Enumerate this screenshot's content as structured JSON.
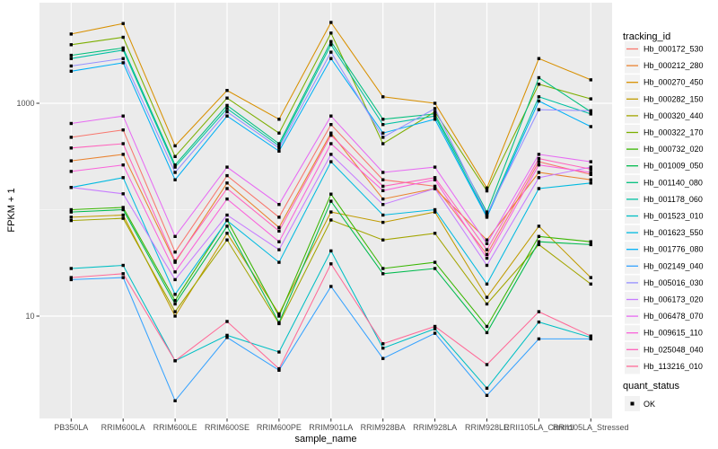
{
  "window": {
    "background": "#FFFFFF"
  },
  "chart_data": {
    "type": "line",
    "title": "",
    "xlabel": "sample_name",
    "ylabel": "FPKM + 1",
    "y_scale": "log10",
    "ylim": [
      1.05,
      7000
    ],
    "yticks": [
      10,
      1000
    ],
    "y_minor_gridlines": [
      100
    ],
    "grid": "on",
    "panel_background": "#EBEBEB",
    "gridline_color": "#FFFFFF",
    "point_color": "#000000",
    "point_shape": "square",
    "legend_position": "right",
    "legend_key_background": "#F2F2F2",
    "categories": [
      "PB350LA",
      "RRIM600LA",
      "RRIM600LE",
      "RRIM600SE",
      "RRIM600PE",
      "RRIM901LA",
      "RRIM928BA",
      "RRIM928LA",
      "RRIM928LE",
      "RRII105LA_Control",
      "RRII105LA_Stressed"
    ],
    "series": [
      {
        "name": "Hb_000172_530",
        "color": "#F8766D",
        "values": [
          479,
          562,
          40,
          209,
          85,
          631,
          191,
          166,
          38,
          282,
          214
        ]
      },
      {
        "name": "Hb_000212_280",
        "color": "#EA8331",
        "values": [
          288,
          331,
          32,
          178,
          68,
          525,
          126,
          158,
          52,
          224,
          191
        ]
      },
      {
        "name": "Hb_000270_450",
        "color": "#D89000",
        "values": [
          4470,
          5620,
          398,
          1320,
          708,
          5750,
          1150,
          1000,
          160,
          2630,
          1660
        ]
      },
      {
        "name": "Hb_000282_150",
        "color": "#C09B00",
        "values": [
          85,
          89,
          10,
          60,
          10.5,
          95,
          76,
          95,
          15,
          70,
          23
        ]
      },
      {
        "name": "Hb_000320_440",
        "color": "#A3A500",
        "values": [
          79,
          83,
          11,
          52,
          8.5,
          80,
          52,
          60,
          13,
          47,
          20
        ]
      },
      {
        "name": "Hb_000322_170",
        "color": "#7CAE00",
        "values": [
          3550,
          4170,
          316,
          1120,
          525,
          4570,
          417,
          832,
          150,
          1510,
          1100
        ]
      },
      {
        "name": "Hb_000732_020",
        "color": "#39B600",
        "values": [
          100,
          105,
          14,
          80,
          10,
          140,
          28,
          32,
          8,
          56,
          50
        ]
      },
      {
        "name": "Hb_001009_050",
        "color": "#00BB4E",
        "values": [
          95,
          100,
          13,
          70,
          8.7,
          120,
          25,
          28,
          7,
          50,
          47
        ]
      },
      {
        "name": "Hb_001140_080",
        "color": "#00BF7D",
        "values": [
          2820,
          3310,
          263,
          955,
          417,
          3800,
          708,
          794,
          95,
          1740,
          832
        ]
      },
      {
        "name": "Hb_001178_060",
        "color": "#00C1A3",
        "values": [
          2630,
          3160,
          251,
          891,
          398,
          3550,
          631,
          759,
          88,
          1150,
          794
        ]
      },
      {
        "name": "Hb_001523_010",
        "color": "#00BFC4",
        "values": [
          28,
          30,
          3.8,
          6.6,
          4.6,
          41,
          5,
          7.6,
          2.1,
          8.8,
          6.3
        ]
      },
      {
        "name": "Hb_001623_550",
        "color": "#00BAE0",
        "values": [
          162,
          200,
          16,
          79,
          32,
          282,
          89,
          100,
          20,
          158,
          178
        ]
      },
      {
        "name": "Hb_001776_080",
        "color": "#00B0F6",
        "values": [
          2000,
          2400,
          191,
          759,
          355,
          2630,
          525,
          708,
          85,
          1050,
          603
        ]
      },
      {
        "name": "Hb_002149_040",
        "color": "#35A2FF",
        "values": [
          22,
          23,
          1.6,
          6.3,
          3.1,
          19,
          4,
          6.9,
          1.8,
          6.1,
          6.1
        ]
      },
      {
        "name": "Hb_005016_030",
        "color": "#9590FF",
        "values": [
          2240,
          2630,
          224,
          832,
          380,
          3020,
          479,
          891,
          90,
          871,
          851
        ]
      },
      {
        "name": "Hb_006173_020",
        "color": "#C77CFF",
        "values": [
          162,
          141,
          22,
          89,
          42,
          331,
          112,
          158,
          30,
          200,
          251
        ]
      },
      {
        "name": "Hb_006478_070",
        "color": "#E76BF3",
        "values": [
          646,
          759,
          56,
          251,
          112,
          759,
          224,
          251,
          48,
          331,
          282
        ]
      },
      {
        "name": "Hb_009615_110",
        "color": "#FA62DB",
        "values": [
          229,
          263,
          26,
          126,
          50,
          417,
          151,
          191,
          35,
          263,
          224
        ]
      },
      {
        "name": "Hb_025048_040",
        "color": "#FF62BC",
        "values": [
          380,
          417,
          33,
          158,
          63,
          501,
          166,
          200,
          42,
          302,
          240
        ]
      },
      {
        "name": "Hb_113216_010",
        "color": "#FF6A98",
        "values": [
          23,
          25,
          3.8,
          8.9,
          3.2,
          31,
          5.5,
          8,
          3.5,
          11,
          6.5
        ]
      }
    ],
    "legend": {
      "tracking_title": "tracking_id",
      "quant_title": "quant_status",
      "quant_value": "OK"
    }
  }
}
